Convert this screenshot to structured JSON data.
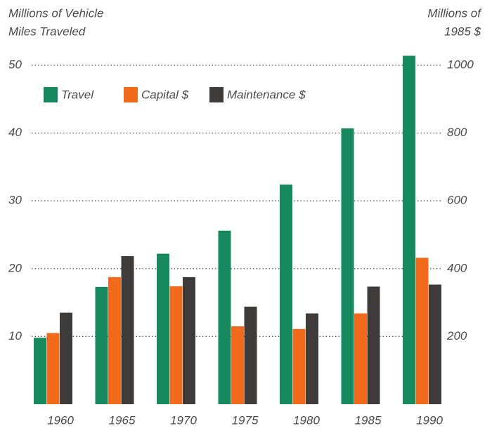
{
  "chart_data": {
    "type": "bar",
    "y_label": [
      "Millions of Vehicle",
      "Miles Traveled"
    ],
    "y2_label": [
      "Millions of",
      "1985 $"
    ],
    "categories": [
      "1960",
      "1965",
      "1970",
      "1975",
      "1980",
      "1985",
      "1990"
    ],
    "series": [
      {
        "name": "Travel",
        "color": "#168a5e",
        "values": [
          9.8,
          17.3,
          22.2,
          25.6,
          32.4,
          40.7,
          51.4
        ]
      },
      {
        "name": "Capital $",
        "color": "#f26a1b",
        "axis": "y2",
        "values": [
          210,
          375,
          348,
          230,
          222,
          268,
          432
        ]
      },
      {
        "name": "Maintenance $",
        "color": "#3f3b3a",
        "axis": "y2",
        "values": [
          270,
          437,
          375,
          288,
          268,
          347,
          353
        ]
      }
    ],
    "ylim": [
      0,
      52
    ],
    "yticks": [
      10,
      20,
      30,
      40,
      50
    ],
    "y2lim": [
      0,
      1040
    ],
    "y2ticks": [
      200,
      400,
      600,
      800,
      1000
    ],
    "grid": true,
    "legend": "top-left"
  }
}
